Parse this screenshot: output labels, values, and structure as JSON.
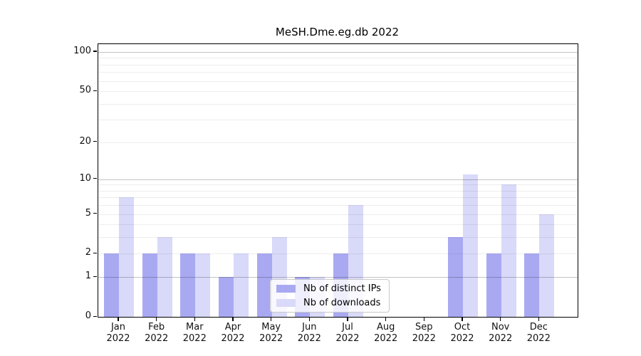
{
  "title": "MeSH.Dme.eg.db 2022",
  "chart_data": {
    "type": "bar",
    "title": "MeSH.Dme.eg.db 2022",
    "x_year": "2022",
    "x_months": [
      "Jan",
      "Feb",
      "Mar",
      "Apr",
      "May",
      "Jun",
      "Jul",
      "Aug",
      "Sep",
      "Oct",
      "Nov",
      "Dec"
    ],
    "categories": [
      "Jan 2022",
      "Feb 2022",
      "Mar 2022",
      "Apr 2022",
      "May 2022",
      "Jun 2022",
      "Jul 2022",
      "Aug 2022",
      "Sep 2022",
      "Oct 2022",
      "Nov 2022",
      "Dec 2022"
    ],
    "series": [
      {
        "name": "Nb of distinct IPs",
        "color": "#a9a9f2",
        "values": [
          2,
          2,
          2,
          1,
          2,
          1,
          2,
          0,
          0,
          3,
          2,
          2
        ]
      },
      {
        "name": "Nb of downloads",
        "color": "#d9d9f9",
        "values": [
          7,
          3,
          2,
          2,
          3,
          1,
          6,
          0,
          0,
          11,
          9,
          5
        ]
      }
    ],
    "y_axis": {
      "scale": "log10(value+1)",
      "major_ticks": [
        100,
        50,
        20,
        10,
        5,
        2,
        1,
        0
      ],
      "emphasized_gridlines": [
        100,
        10,
        1
      ],
      "minor_gridlines": [
        90,
        80,
        70,
        60,
        40,
        30,
        9,
        8,
        7,
        6,
        4,
        3
      ],
      "top_value": 104
    },
    "grid": true,
    "legend_position": "lower center"
  },
  "legend": {
    "items": [
      {
        "label": "Nb of distinct IPs",
        "color": "#a9a9f2"
      },
      {
        "label": "Nb of downloads",
        "color": "#d9d9f9"
      }
    ]
  }
}
